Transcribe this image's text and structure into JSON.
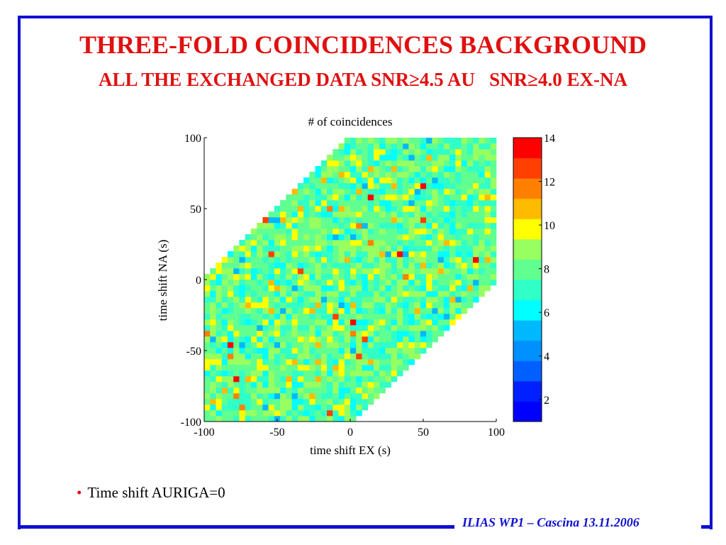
{
  "slide": {
    "title": "THREE-FOLD COINCIDENCES BACKGROUND",
    "subtitle": "ALL THE EXCHANGED DATA SNR≥4.5 AU   SNR≥4.0 EX-NA",
    "bullet": "Time shift AURIGA=0",
    "footer": "ILIAS WP1 – Cascina 13.11.2006",
    "colors": {
      "accent": "#e01010",
      "frame": "#1010d0"
    }
  },
  "chart_data": {
    "type": "heatmap",
    "title": "# of coincidences",
    "xlabel": "time shift EX (s)",
    "ylabel": "time shift NA (s)",
    "xlim": [
      -100,
      100
    ],
    "ylim": [
      -100,
      100
    ],
    "xticks": [
      "-100",
      "-50",
      "0",
      "50",
      "100"
    ],
    "yticks": [
      "100",
      "50",
      "0",
      "-50",
      "-100"
    ],
    "region": "hexagon: x - y between -100 and 100 within axis limits",
    "typical_value": 8,
    "value_range": [
      1,
      14
    ],
    "colorbar": {
      "min": 1,
      "max": 14,
      "ticks": [
        "14",
        "12",
        "10",
        "8",
        "6",
        "4",
        "2"
      ],
      "colors": [
        "#0000ff",
        "#0020ff",
        "#0060ff",
        "#0090ff",
        "#00b8ff",
        "#00ffff",
        "#30ffc8",
        "#60ff90",
        "#98ff60",
        "#ffff00",
        "#ffbb00",
        "#ff8000",
        "#ff4000",
        "#ff0000"
      ]
    }
  }
}
